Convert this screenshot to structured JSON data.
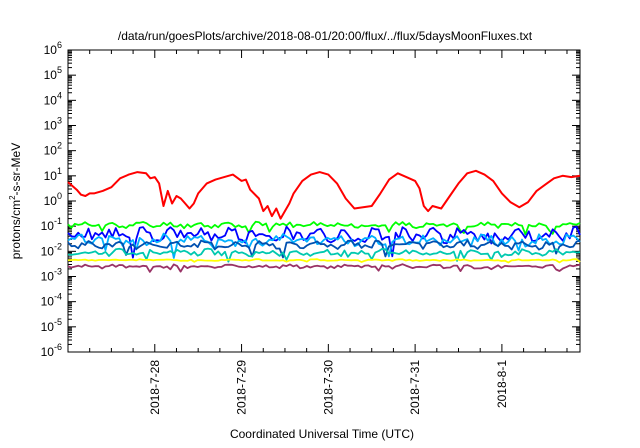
{
  "chart_data": {
    "type": "line",
    "title": "/data/run/goesPlots/archive/2018-08-01/20:00/flux/../flux/5daysMoonFluxes.txt",
    "xlabel": "Coordinated Universal Time (UTC)",
    "ylabel": {
      "pre": "protons/cm",
      "sup": "2",
      "post": "-s-sr-MeV"
    },
    "yscale": "log",
    "ylim_exp": [
      -6,
      6
    ],
    "y_ticks": [
      {
        "base": "10",
        "exp": "6",
        "e": 6
      },
      {
        "base": "10",
        "exp": "5",
        "e": 5
      },
      {
        "base": "10",
        "exp": "4",
        "e": 4
      },
      {
        "base": "10",
        "exp": "3",
        "e": 3
      },
      {
        "base": "10",
        "exp": "2",
        "e": 2
      },
      {
        "base": "10",
        "exp": "1",
        "e": 1
      },
      {
        "base": "10",
        "exp": "0",
        "e": 0
      },
      {
        "base": "10",
        "exp": "-1",
        "e": -1
      },
      {
        "base": "10",
        "exp": "-2",
        "e": -2
      },
      {
        "base": "10",
        "exp": "-3",
        "e": -3
      },
      {
        "base": "10",
        "exp": "-4",
        "e": -4
      },
      {
        "base": "10",
        "exp": "-5",
        "e": -5
      },
      {
        "base": "10",
        "exp": "-6",
        "e": -6
      }
    ],
    "xlim_days": [
      -1.0,
      4.9
    ],
    "x_ticks": [
      {
        "label": "2018-7-28",
        "day": 0
      },
      {
        "label": "2018-7-29",
        "day": 1
      },
      {
        "label": "2018-7-30",
        "day": 2
      },
      {
        "label": "2018-7-31",
        "day": 3
      },
      {
        "label": "2018-8-1",
        "day": 4
      }
    ],
    "grid": false,
    "series": [
      {
        "color": "#ff0000",
        "x_days": [
          -1.0,
          -0.95,
          -0.9,
          -0.85,
          -0.8,
          -0.75,
          -0.7,
          -0.6,
          -0.5,
          -0.4,
          -0.3,
          -0.2,
          -0.1,
          -0.05,
          0.0,
          0.05,
          0.1,
          0.15,
          0.2,
          0.25,
          0.3,
          0.35,
          0.4,
          0.45,
          0.5,
          0.6,
          0.7,
          0.8,
          0.9,
          1.0,
          1.05,
          1.1,
          1.2,
          1.25,
          1.3,
          1.35,
          1.4,
          1.45,
          1.5,
          1.55,
          1.6,
          1.7,
          1.8,
          1.9,
          2.0,
          2.1,
          2.2,
          2.3,
          2.4,
          2.5,
          2.6,
          2.7,
          2.8,
          2.9,
          3.0,
          3.05,
          3.1,
          3.15,
          3.2,
          3.3,
          3.4,
          3.5,
          3.6,
          3.7,
          3.8,
          3.9,
          4.0,
          4.1,
          4.2,
          4.3,
          4.4,
          4.5,
          4.6,
          4.7,
          4.8,
          4.9
        ],
        "y_exp": [
          0.75,
          0.6,
          0.45,
          0.25,
          0.2,
          0.3,
          0.3,
          0.4,
          0.55,
          0.9,
          1.05,
          1.15,
          1.1,
          0.9,
          0.95,
          0.7,
          -0.2,
          0.4,
          -0.1,
          0.2,
          0.1,
          -0.1,
          -0.3,
          -0.1,
          0.3,
          0.7,
          0.85,
          0.95,
          1.05,
          0.8,
          0.85,
          0.45,
          0.1,
          -0.4,
          -0.2,
          -0.6,
          -0.3,
          -0.7,
          -0.4,
          -0.1,
          0.3,
          0.8,
          1.05,
          1.15,
          1.05,
          0.7,
          0.1,
          -0.3,
          -0.25,
          -0.2,
          0.3,
          0.85,
          1.1,
          0.95,
          0.8,
          0.5,
          -0.2,
          -0.4,
          -0.2,
          -0.3,
          0.2,
          0.7,
          1.1,
          1.2,
          1.05,
          0.8,
          0.3,
          -0.05,
          -0.25,
          -0.05,
          0.4,
          0.65,
          0.9,
          1.0,
          0.95,
          1.0
        ]
      },
      {
        "color": "#00ff00",
        "base": -0.95,
        "amp": 0.18,
        "seed": 11
      },
      {
        "color": "#0000ff",
        "base": -1.35,
        "amp": 0.45,
        "seed": 23
      },
      {
        "color": "#00b0ff",
        "base": -1.55,
        "amp": 0.35,
        "seed": 37
      },
      {
        "color": "#0050b0",
        "base": -1.75,
        "amp": 0.25,
        "seed": 41
      },
      {
        "color": "#00c8b0",
        "base": -2.05,
        "amp": 0.2,
        "seed": 53
      },
      {
        "color": "#ffff00",
        "base": -2.35,
        "amp": 0.05,
        "seed": 61
      },
      {
        "color": "#993366",
        "base": -2.6,
        "amp": 0.12,
        "seed": 73
      }
    ]
  }
}
